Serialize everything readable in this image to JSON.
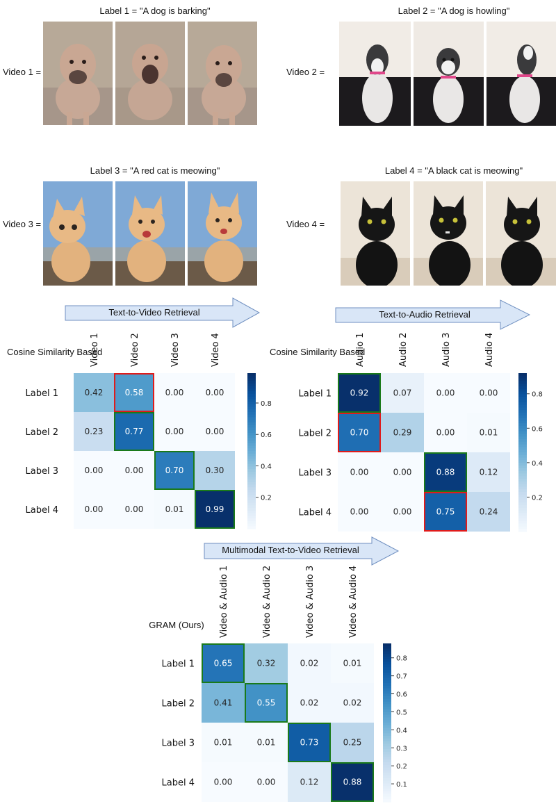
{
  "videos": [
    {
      "row_label": "Video 1 =",
      "caption": "Label 1 = \"A dog is barking\""
    },
    {
      "row_label": "Video 2 =",
      "caption": "Label 2 = \"A dog is howling\""
    },
    {
      "row_label": "Video 3 =",
      "caption": "Label 3 = \"A red cat is meowing\""
    },
    {
      "row_label": "Video 4 =",
      "caption": "Label 4 = \"A black cat is meowing\""
    }
  ],
  "arrows": {
    "text_to_video": "Text-to-Video Retrieval",
    "text_to_audio": "Text-to-Audio Retrieval",
    "multimodal": "Multimodal Text-to-Video Retrieval"
  },
  "panel_titles": {
    "cosine_left": "Cosine Similarity Based",
    "cosine_right": "Cosine Similarity Based",
    "gram": "GRAM (Ours)"
  },
  "colors": {
    "cmap_low": "#f7fbff",
    "cmap_high": "#08306b",
    "highlight_correct": "#1a7a1a",
    "highlight_wrong": "#e01b1b",
    "arrow_fill": "#d9e6f7",
    "arrow_stroke": "#6f8fc0"
  },
  "chart_data": [
    {
      "type": "heatmap",
      "rows": [
        "Label 1",
        "Label 2",
        "Label 3",
        "Label 4"
      ],
      "columns": [
        "Video 1",
        "Video 2",
        "Video 3",
        "Video 4"
      ],
      "values": [
        [
          0.42,
          0.58,
          0.0,
          0.0
        ],
        [
          0.23,
          0.77,
          0.0,
          0.0
        ],
        [
          0.0,
          0.0,
          0.7,
          0.3
        ],
        [
          0.0,
          0.0,
          0.01,
          0.99
        ]
      ],
      "colorbar_range": [
        0,
        0.99
      ],
      "colorbar_ticks": [
        0.2,
        0.4,
        0.6,
        0.8
      ],
      "highlight_green": [
        [
          1,
          1
        ],
        [
          2,
          2
        ],
        [
          3,
          3
        ]
      ],
      "highlight_red": [
        [
          0,
          1
        ]
      ]
    },
    {
      "type": "heatmap",
      "rows": [
        "Label 1",
        "Label 2",
        "Label 3",
        "Label 4"
      ],
      "columns": [
        "Audio 1",
        "Audio 2",
        "Audio 3",
        "Audio 4"
      ],
      "values": [
        [
          0.92,
          0.07,
          0.0,
          0.0
        ],
        [
          0.7,
          0.29,
          0.0,
          0.01
        ],
        [
          0.0,
          0.0,
          0.88,
          0.12
        ],
        [
          0.0,
          0.0,
          0.75,
          0.24
        ]
      ],
      "colorbar_range": [
        0,
        0.92
      ],
      "colorbar_ticks": [
        0.2,
        0.4,
        0.6,
        0.8
      ],
      "highlight_green": [
        [
          0,
          0
        ],
        [
          2,
          2
        ]
      ],
      "highlight_red": [
        [
          1,
          0
        ],
        [
          3,
          2
        ]
      ]
    },
    {
      "type": "heatmap",
      "rows": [
        "Label 1",
        "Label 2",
        "Label 3",
        "Label 4"
      ],
      "columns": [
        "Video & Audio 1",
        "Video & Audio 2",
        "Video & Audio 3",
        "Video & Audio 4"
      ],
      "values": [
        [
          0.65,
          0.32,
          0.02,
          0.01
        ],
        [
          0.41,
          0.55,
          0.02,
          0.02
        ],
        [
          0.01,
          0.01,
          0.73,
          0.25
        ],
        [
          0.0,
          0.0,
          0.12,
          0.88
        ]
      ],
      "colorbar_range": [
        0,
        0.88
      ],
      "colorbar_ticks": [
        0.1,
        0.2,
        0.3,
        0.4,
        0.5,
        0.6,
        0.7,
        0.8
      ],
      "highlight_green": [
        [
          0,
          0
        ],
        [
          1,
          1
        ],
        [
          2,
          2
        ],
        [
          3,
          3
        ]
      ],
      "highlight_red": []
    }
  ]
}
